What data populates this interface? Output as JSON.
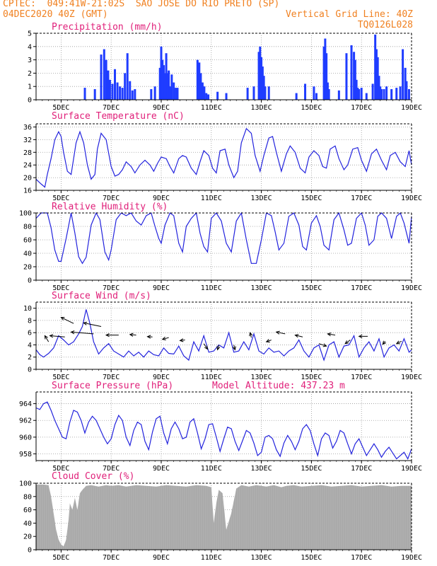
{
  "header": {
    "line1_left": "CPTEC:  049:41W-21:02S  SAO JOSE DO RIO PRETO (SP)",
    "line2_left": "04DEC2020 40Z (GMT)",
    "line2_right": "Vertical Grid Line: 40Z",
    "line3_right": "TQ0126L028"
  },
  "colors": {
    "header": "#f08020",
    "title": "#e0207a",
    "line": "#2323dd",
    "bar": "#1f3cff",
    "cloud": "#a8a8a8",
    "grid": "#9a9a9a"
  },
  "x_axis": {
    "labels": [
      "5DEC",
      "7DEC",
      "9DEC",
      "11DEC",
      "13DEC",
      "15DEC",
      "17DEC",
      "19DEC"
    ],
    "positions_day": [
      5,
      7,
      9,
      11,
      13,
      15,
      17,
      19
    ],
    "range_day": [
      4.0,
      19.0
    ]
  },
  "chart_data": [
    {
      "id": "precip",
      "type": "bar",
      "title": "Precipitation (mm/h)",
      "ylim": [
        0,
        5
      ],
      "yticks": [
        0,
        1,
        2,
        3,
        4,
        5
      ],
      "x": [
        5.95,
        6.35,
        6.6,
        6.72,
        6.8,
        6.88,
        6.95,
        7.05,
        7.15,
        7.25,
        7.35,
        7.45,
        7.55,
        7.65,
        7.75,
        7.85,
        7.95,
        8.6,
        8.75,
        8.95,
        9.0,
        9.05,
        9.1,
        9.15,
        9.2,
        9.25,
        9.3,
        9.35,
        9.42,
        9.5,
        9.58,
        9.65,
        10.45,
        10.52,
        10.58,
        10.65,
        10.72,
        10.8,
        10.88,
        11.25,
        11.6,
        12.45,
        12.7,
        12.9,
        12.95,
        13.0,
        13.05,
        13.1,
        13.15,
        13.3,
        14.4,
        14.75,
        15.1,
        15.2,
        15.5,
        15.55,
        15.6,
        15.65,
        15.7,
        16.1,
        16.4,
        16.6,
        16.7,
        16.75,
        16.8,
        16.85,
        16.9,
        17.0,
        17.2,
        17.45,
        17.55,
        17.6,
        17.65,
        17.7,
        17.75,
        17.8,
        17.9,
        18.0,
        18.2,
        18.4,
        18.55,
        18.65,
        18.75,
        18.8,
        18.9
      ],
      "values": [
        0.9,
        0.8,
        3.4,
        3.8,
        3.0,
        2.2,
        1.5,
        1.2,
        2.3,
        1.3,
        1.0,
        0.9,
        2.0,
        3.5,
        1.4,
        0.7,
        0.8,
        0.8,
        1.0,
        2.4,
        4.0,
        3.0,
        2.6,
        2.0,
        3.5,
        2.0,
        2.2,
        1.0,
        1.9,
        1.3,
        0.9,
        0.9,
        3.0,
        2.8,
        2.0,
        1.3,
        1.0,
        0.5,
        0.4,
        0.6,
        0.5,
        0.9,
        1.0,
        3.6,
        4.0,
        3.2,
        2.5,
        1.8,
        1.0,
        1.0,
        0.5,
        1.2,
        1.0,
        0.5,
        4.0,
        4.6,
        3.5,
        1.3,
        0.8,
        0.7,
        3.5,
        4.1,
        3.6,
        3.0,
        1.5,
        0.9,
        0.8,
        0.9,
        0.5,
        1.2,
        4.9,
        3.8,
        3.2,
        1.8,
        1.0,
        0.8,
        0.8,
        1.0,
        0.8,
        0.9,
        1.0,
        3.8,
        2.4,
        1.4,
        0.8
      ]
    },
    {
      "id": "temp",
      "type": "line",
      "title": "Surface Temperature (nC)",
      "ylim": [
        16,
        37
      ],
      "yticks": [
        16,
        20,
        24,
        28,
        32,
        36
      ],
      "x": [
        4.0,
        4.2,
        4.35,
        4.45,
        4.6,
        4.75,
        4.9,
        5.0,
        5.1,
        5.25,
        5.4,
        5.6,
        5.75,
        5.9,
        6.05,
        6.2,
        6.35,
        6.45,
        6.6,
        6.8,
        7.0,
        7.15,
        7.3,
        7.45,
        7.6,
        7.8,
        7.95,
        8.15,
        8.35,
        8.55,
        8.7,
        8.85,
        9.0,
        9.2,
        9.35,
        9.5,
        9.7,
        9.85,
        10.0,
        10.2,
        10.4,
        10.55,
        10.7,
        10.9,
        11.05,
        11.2,
        11.35,
        11.55,
        11.7,
        11.9,
        12.05,
        12.2,
        12.4,
        12.6,
        12.75,
        12.95,
        13.1,
        13.3,
        13.45,
        13.6,
        13.8,
        14.0,
        14.15,
        14.35,
        14.55,
        14.75,
        14.9,
        15.1,
        15.3,
        15.45,
        15.6,
        15.75,
        15.95,
        16.1,
        16.3,
        16.45,
        16.65,
        16.85,
        17.0,
        17.2,
        17.4,
        17.6,
        17.8,
        18.0,
        18.15,
        18.35,
        18.55,
        18.75,
        18.9,
        19.0
      ],
      "values": [
        19.5,
        18.0,
        17.0,
        21.0,
        26.0,
        32.0,
        34.5,
        33.0,
        28.0,
        22.0,
        21.0,
        31.0,
        34.5,
        31.0,
        24.0,
        19.5,
        21.0,
        29.0,
        34.0,
        32.0,
        23.5,
        20.5,
        21.0,
        22.5,
        25.0,
        23.5,
        21.5,
        24.0,
        25.5,
        24.0,
        22.0,
        24.5,
        26.5,
        26.0,
        23.5,
        21.5,
        26.0,
        27.0,
        26.5,
        23.0,
        21.0,
        25.0,
        28.5,
        27.0,
        23.0,
        21.5,
        28.5,
        29.0,
        24.0,
        20.0,
        22.0,
        31.0,
        35.5,
        34.0,
        27.0,
        22.0,
        27.0,
        32.5,
        33.0,
        28.0,
        22.0,
        27.5,
        30.0,
        28.0,
        23.0,
        21.5,
        26.5,
        28.5,
        27.0,
        23.5,
        23.0,
        29.0,
        30.0,
        26.0,
        22.5,
        24.0,
        29.0,
        29.5,
        25.5,
        22.0,
        27.5,
        29.0,
        25.5,
        22.5,
        27.0,
        28.0,
        25.0,
        23.5,
        28.5,
        24.0
      ]
    },
    {
      "id": "rh",
      "type": "line",
      "title": "Relative Humidity (%)",
      "ylim": [
        0,
        100
      ],
      "yticks": [
        0,
        20,
        40,
        60,
        80,
        100
      ],
      "x": [
        4.0,
        4.2,
        4.45,
        4.6,
        4.75,
        4.9,
        5.0,
        5.2,
        5.4,
        5.55,
        5.7,
        5.85,
        6.0,
        6.2,
        6.4,
        6.55,
        6.75,
        6.9,
        7.0,
        7.2,
        7.4,
        7.6,
        7.8,
        8.0,
        8.2,
        8.4,
        8.6,
        8.75,
        8.9,
        9.0,
        9.15,
        9.35,
        9.5,
        9.7,
        9.85,
        10.0,
        10.2,
        10.4,
        10.55,
        10.7,
        10.85,
        11.0,
        11.2,
        11.4,
        11.6,
        11.8,
        12.0,
        12.2,
        12.4,
        12.6,
        12.8,
        13.0,
        13.2,
        13.4,
        13.55,
        13.7,
        13.9,
        14.1,
        14.3,
        14.5,
        14.65,
        14.8,
        15.0,
        15.2,
        15.35,
        15.5,
        15.7,
        15.9,
        16.1,
        16.3,
        16.45,
        16.6,
        16.8,
        17.0,
        17.15,
        17.3,
        17.5,
        17.65,
        17.8,
        18.0,
        18.2,
        18.4,
        18.55,
        18.7,
        18.9,
        19.0
      ],
      "values": [
        92,
        100,
        100,
        78,
        45,
        28,
        28,
        62,
        100,
        70,
        35,
        25,
        34,
        82,
        100,
        90,
        42,
        30,
        45,
        90,
        100,
        96,
        100,
        88,
        82,
        96,
        100,
        80,
        62,
        55,
        82,
        100,
        96,
        55,
        42,
        80,
        92,
        100,
        70,
        50,
        42,
        92,
        100,
        88,
        55,
        42,
        88,
        100,
        60,
        25,
        25,
        60,
        100,
        96,
        72,
        45,
        55,
        95,
        100,
        82,
        50,
        45,
        85,
        96,
        80,
        52,
        45,
        90,
        100,
        75,
        52,
        55,
        92,
        100,
        82,
        52,
        60,
        95,
        100,
        92,
        62,
        95,
        100,
        85,
        55,
        95
      ]
    },
    {
      "id": "wind",
      "type": "line",
      "title": "Surface Wind (m/s)",
      "ylim": [
        0,
        11
      ],
      "yticks": [
        0,
        2,
        4,
        6,
        8,
        10
      ],
      "x": [
        4.0,
        4.15,
        4.3,
        4.5,
        4.7,
        4.9,
        5.1,
        5.3,
        5.5,
        5.7,
        5.85,
        6.0,
        6.15,
        6.3,
        6.5,
        6.7,
        6.9,
        7.1,
        7.3,
        7.5,
        7.7,
        7.9,
        8.1,
        8.3,
        8.5,
        8.7,
        8.9,
        9.1,
        9.3,
        9.5,
        9.7,
        9.9,
        10.1,
        10.3,
        10.5,
        10.7,
        10.9,
        11.1,
        11.3,
        11.5,
        11.7,
        11.9,
        12.1,
        12.3,
        12.5,
        12.7,
        12.9,
        13.1,
        13.3,
        13.5,
        13.7,
        13.9,
        14.1,
        14.3,
        14.5,
        14.7,
        14.9,
        15.1,
        15.3,
        15.5,
        15.7,
        15.9,
        16.1,
        16.3,
        16.5,
        16.7,
        16.9,
        17.1,
        17.3,
        17.5,
        17.7,
        17.9,
        18.1,
        18.3,
        18.5,
        18.7,
        18.9,
        19.0
      ],
      "values": [
        3.2,
        2.4,
        2.0,
        2.6,
        3.5,
        5.5,
        4.8,
        4.0,
        4.5,
        5.8,
        7.0,
        9.8,
        7.5,
        4.5,
        2.5,
        3.5,
        4.2,
        3.0,
        2.5,
        2.0,
        3.0,
        2.2,
        2.8,
        2.0,
        3.0,
        2.4,
        2.2,
        3.5,
        2.6,
        2.5,
        3.8,
        2.2,
        1.5,
        4.5,
        3.0,
        5.5,
        2.8,
        3.0,
        4.0,
        3.5,
        6.0,
        2.8,
        3.0,
        4.5,
        3.2,
        5.8,
        3.0,
        2.5,
        3.5,
        2.8,
        3.0,
        2.2,
        3.0,
        3.5,
        4.8,
        3.0,
        2.0,
        3.5,
        4.0,
        1.5,
        4.0,
        4.5,
        2.0,
        3.8,
        4.0,
        5.5,
        2.0,
        3.5,
        4.5,
        3.0,
        5.0,
        2.0,
        3.5,
        4.0,
        3.0,
        5.0,
        2.8,
        3.2
      ],
      "arrows": [
        {
          "x": 4.5,
          "y": 4.5,
          "dx": -0.15,
          "dy": 1.0
        },
        {
          "x": 5.15,
          "y": 5.3,
          "dx": -0.6,
          "dy": 0.2
        },
        {
          "x": 5.5,
          "y": 7.5,
          "dx": -0.5,
          "dy": 1.0
        },
        {
          "x": 6.3,
          "y": 5.8,
          "dx": -0.9,
          "dy": 0.3
        },
        {
          "x": 6.6,
          "y": 7.0,
          "dx": -0.7,
          "dy": 0.6
        },
        {
          "x": 7.3,
          "y": 5.6,
          "dx": -0.5,
          "dy": 0.0
        },
        {
          "x": 8.0,
          "y": 5.6,
          "dx": -0.25,
          "dy": 0.1
        },
        {
          "x": 8.65,
          "y": 5.3,
          "dx": -0.2,
          "dy": 0.05
        },
        {
          "x": 9.3,
          "y": 5.2,
          "dx": -0.25,
          "dy": -0.3
        },
        {
          "x": 9.95,
          "y": 4.8,
          "dx": -0.2,
          "dy": -0.1
        },
        {
          "x": 10.7,
          "y": 4.2,
          "dx": 0.15,
          "dy": -0.9
        },
        {
          "x": 11.3,
          "y": 4.0,
          "dx": -0.05,
          "dy": -0.8
        },
        {
          "x": 11.9,
          "y": 4.0,
          "dx": 0.05,
          "dy": -0.8
        },
        {
          "x": 12.6,
          "y": 5.2,
          "dx": -0.05,
          "dy": 0.8
        },
        {
          "x": 13.4,
          "y": 4.8,
          "dx": -0.2,
          "dy": -0.3
        },
        {
          "x": 13.95,
          "y": 5.8,
          "dx": -0.35,
          "dy": 0.3
        },
        {
          "x": 14.65,
          "y": 5.3,
          "dx": -0.3,
          "dy": 0.3
        },
        {
          "x": 15.3,
          "y": 4.2,
          "dx": 0.3,
          "dy": -0.4
        },
        {
          "x": 15.95,
          "y": 5.6,
          "dx": -0.3,
          "dy": 0.2
        },
        {
          "x": 16.55,
          "y": 4.8,
          "dx": -0.2,
          "dy": -0.6
        },
        {
          "x": 17.25,
          "y": 5.4,
          "dx": -0.35,
          "dy": 0.0
        },
        {
          "x": 17.95,
          "y": 4.6,
          "dx": -0.1,
          "dy": -0.5
        },
        {
          "x": 18.6,
          "y": 4.6,
          "dx": -0.2,
          "dy": -0.4
        }
      ]
    },
    {
      "id": "press",
      "type": "line",
      "title": "Surface Pressure (hPa)",
      "subtitle": "Model Altitude: 437.23 m",
      "ylim": [
        957.2,
        965.4
      ],
      "yticks": [
        958,
        960,
        962,
        964
      ],
      "x": [
        4.0,
        4.15,
        4.3,
        4.45,
        4.6,
        4.75,
        4.9,
        5.05,
        5.2,
        5.35,
        5.5,
        5.65,
        5.8,
        5.95,
        6.1,
        6.25,
        6.4,
        6.55,
        6.7,
        6.85,
        7.0,
        7.15,
        7.3,
        7.45,
        7.6,
        7.75,
        7.9,
        8.05,
        8.2,
        8.35,
        8.5,
        8.65,
        8.8,
        8.95,
        9.1,
        9.25,
        9.4,
        9.55,
        9.7,
        9.85,
        10.0,
        10.15,
        10.3,
        10.45,
        10.6,
        10.75,
        10.9,
        11.05,
        11.2,
        11.35,
        11.5,
        11.65,
        11.8,
        11.95,
        12.1,
        12.25,
        12.4,
        12.55,
        12.7,
        12.85,
        13.0,
        13.15,
        13.3,
        13.45,
        13.6,
        13.75,
        13.9,
        14.05,
        14.2,
        14.35,
        14.5,
        14.65,
        14.8,
        14.95,
        15.1,
        15.25,
        15.4,
        15.55,
        15.7,
        15.85,
        16.0,
        16.15,
        16.3,
        16.45,
        16.6,
        16.75,
        16.9,
        17.05,
        17.2,
        17.35,
        17.5,
        17.65,
        17.8,
        17.95,
        18.1,
        18.25,
        18.4,
        18.55,
        18.7,
        18.85,
        19.0
      ],
      "values": [
        963.5,
        963.3,
        964.0,
        964.2,
        963.2,
        962.0,
        961.0,
        960.0,
        959.8,
        961.8,
        963.2,
        963.0,
        962.0,
        960.5,
        961.8,
        962.5,
        962.0,
        961.0,
        960.0,
        959.2,
        959.8,
        961.5,
        962.6,
        962.0,
        960.0,
        959.0,
        960.8,
        961.8,
        961.5,
        959.5,
        958.5,
        960.6,
        962.2,
        962.5,
        960.5,
        959.2,
        961.0,
        961.8,
        961.0,
        959.8,
        960.0,
        961.8,
        962.2,
        960.5,
        958.6,
        959.8,
        961.5,
        961.6,
        960.0,
        958.3,
        959.8,
        961.2,
        961.0,
        959.5,
        958.4,
        959.6,
        960.8,
        960.5,
        959.3,
        957.8,
        958.2,
        960.0,
        960.2,
        959.8,
        958.5,
        957.7,
        959.3,
        960.2,
        959.5,
        958.5,
        959.5,
        961.0,
        961.5,
        960.8,
        959.2,
        957.8,
        959.8,
        960.5,
        960.2,
        958.7,
        959.5,
        960.8,
        960.5,
        959.2,
        958.0,
        959.2,
        959.8,
        958.8,
        957.8,
        958.5,
        959.2,
        958.5,
        957.6,
        958.3,
        958.8,
        958.1,
        957.4,
        957.8,
        958.2,
        957.4,
        958.6
      ]
    },
    {
      "id": "cloud",
      "type": "area",
      "title": "Cloud Cover (%)",
      "ylim": [
        0,
        100
      ],
      "yticks": [
        0,
        20,
        40,
        60,
        80,
        100
      ],
      "x": [
        4.0,
        4.3,
        4.5,
        4.6,
        4.7,
        4.8,
        4.9,
        5.0,
        5.1,
        5.2,
        5.3,
        5.35,
        5.45,
        5.55,
        5.65,
        5.75,
        5.85,
        6.0,
        6.2,
        6.5,
        6.8,
        7.0,
        7.3,
        7.6,
        8.0,
        8.4,
        8.8,
        9.2,
        9.6,
        10.0,
        10.4,
        10.8,
        11.0,
        11.1,
        11.2,
        11.3,
        11.45,
        11.6,
        11.8,
        12.0,
        12.2,
        12.5,
        12.8,
        13.0,
        13.2,
        13.5,
        13.8,
        14.0,
        14.3,
        14.6,
        15.0,
        15.4,
        15.8,
        16.2,
        16.6,
        17.0,
        17.4,
        17.8,
        18.2,
        18.6,
        19.0
      ],
      "values": [
        98,
        98,
        97,
        80,
        55,
        30,
        15,
        8,
        5,
        15,
        45,
        70,
        60,
        78,
        60,
        85,
        90,
        96,
        97,
        95,
        97,
        96,
        97,
        95,
        97,
        96,
        95,
        97,
        96,
        95,
        97,
        96,
        94,
        40,
        70,
        90,
        85,
        30,
        55,
        92,
        97,
        95,
        97,
        96,
        95,
        97,
        94,
        96,
        97,
        95,
        96,
        97,
        95,
        96,
        97,
        95,
        96,
        97,
        95,
        96,
        96
      ]
    }
  ]
}
